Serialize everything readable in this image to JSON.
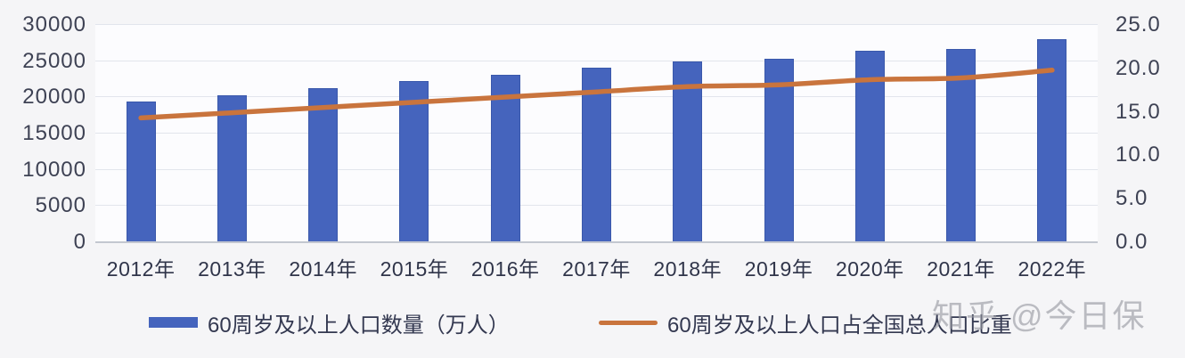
{
  "chart_data": {
    "type": "bar",
    "subtype": "combo-bar-line-dual-axis",
    "categories": [
      "2012年",
      "2013年",
      "2014年",
      "2015年",
      "2016年",
      "2017年",
      "2018年",
      "2019年",
      "2020年",
      "2021年",
      "2022年"
    ],
    "series": [
      {
        "name": "60周岁及以上人口数量（万人）",
        "type": "bar",
        "axis": "left",
        "color": "#4564bd",
        "values": [
          19390,
          20243,
          21242,
          22200,
          23086,
          24090,
          24949,
          25388,
          26402,
          26736,
          28004
        ]
      },
      {
        "name": "60周岁及以上人口占全国总人口比重",
        "type": "line",
        "axis": "right",
        "color": "#c9743d",
        "values": [
          14.3,
          14.9,
          15.5,
          16.1,
          16.7,
          17.3,
          17.9,
          18.1,
          18.7,
          18.9,
          19.8
        ]
      }
    ],
    "title": "",
    "xlabel": "",
    "ylabel_left": "",
    "ylabel_right": "",
    "left_axis": {
      "min": 0,
      "max": 30000,
      "step": 5000,
      "tick_labels": [
        "30000",
        "25000",
        "20000",
        "15000",
        "10000",
        "5000",
        "0"
      ]
    },
    "right_axis": {
      "min": 0,
      "max": 25,
      "step": 5,
      "tick_labels": [
        "25.0",
        "20.0",
        "15.0",
        "10.0",
        "5.0",
        "0.0"
      ]
    },
    "grid": true,
    "legend_position": "bottom"
  },
  "legend": {
    "bar_label": "60周岁及以上人口数量（万人）",
    "line_label": "60周岁及以上人口占全国总人口比重"
  },
  "watermark": {
    "text": "知乎 @今日保"
  },
  "colors": {
    "bar": "#4564bd",
    "bar_border": "#3a58ab",
    "line": "#c9743d",
    "grid": "#e2e5ec",
    "axis_line": "#c3c7d0",
    "tick_text": "#3e4254",
    "page_bg": "#f5f5f7",
    "plot_bg": "#fcfcfe"
  }
}
